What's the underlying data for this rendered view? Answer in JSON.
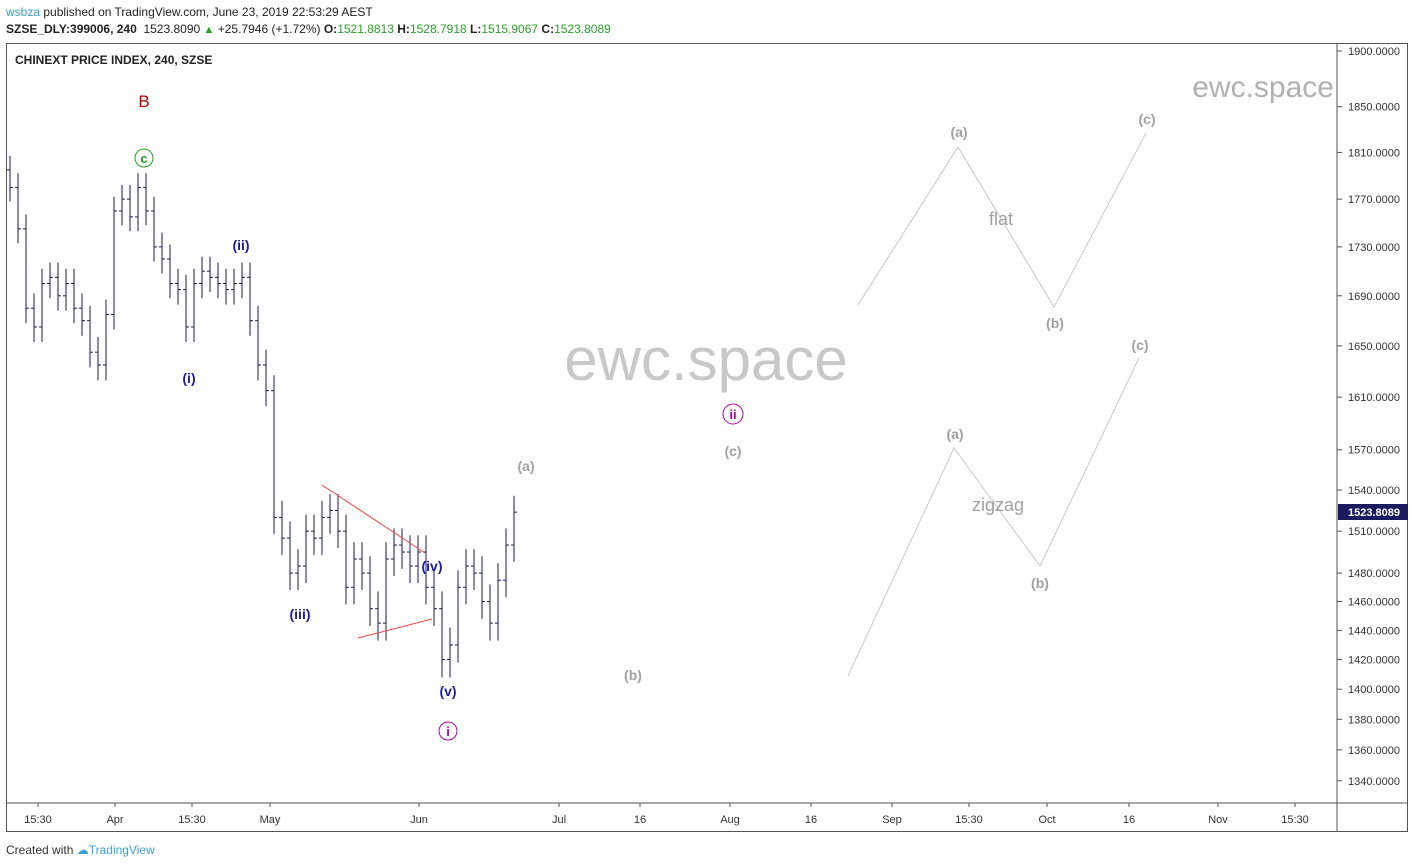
{
  "header": {
    "user": "wsbza",
    "published": "published on TradingView.com, June 23, 2019 22:53:29 AEST",
    "symbol": "SZSE_DLY:399006, 240",
    "last": "1523.8090",
    "change": "+25.7946 (+1.72%)",
    "o_label": "O:",
    "o": "1521.8813",
    "h_label": "H:",
    "h": "1528.7918",
    "l_label": "L:",
    "l": "1515.9067",
    "c_label": "C:",
    "c": "1523.8089",
    "up_icon": "triangle-up-icon"
  },
  "footer": {
    "created": "Created with",
    "brand": "TradingView",
    "logo_icon": "tradingview-cloud-icon"
  },
  "watermark": {
    "center": "ewc.space",
    "corner": "ewc.space"
  },
  "chart_data": {
    "type": "ohlc",
    "title": "CHINEXT PRICE INDEX, 240, SZSE",
    "y_scale": "log",
    "ylim": [
      1325,
      1910
    ],
    "y_ticks": [
      1900,
      1850,
      1810,
      1770,
      1730,
      1690,
      1650,
      1610,
      1570,
      1540,
      1510,
      1480,
      1460,
      1440,
      1420,
      1400,
      1380,
      1360,
      1340
    ],
    "y_tick_labels": [
      "1900.0000",
      "1850.0000",
      "1810.0000",
      "1770.0000",
      "1730.0000",
      "1690.0000",
      "1650.0000",
      "1610.0000",
      "1570.0000",
      "1540.0000",
      "1510.0000",
      "1480.0000",
      "1460.0000",
      "1440.0000",
      "1420.0000",
      "1400.0000",
      "1380.0000",
      "1360.0000",
      "1340.0000"
    ],
    "x_tick_labels": [
      "15:30",
      "Apr",
      "15:30",
      "May",
      "Jun",
      "Jul",
      "16",
      "Aug",
      "16",
      "Sep",
      "15:30",
      "Oct",
      "16",
      "Nov",
      "15:30"
    ],
    "closes": [
      1780,
      1745,
      1680,
      1665,
      1700,
      1705,
      1690,
      1700,
      1680,
      1670,
      1645,
      1635,
      1675,
      1760,
      1770,
      1755,
      1780,
      1760,
      1730,
      1720,
      1700,
      1695,
      1665,
      1700,
      1710,
      1705,
      1700,
      1695,
      1700,
      1705,
      1670,
      1635,
      1615,
      1520,
      1505,
      1480,
      1485,
      1510,
      1505,
      1520,
      1525,
      1510,
      1470,
      1490,
      1480,
      1455,
      1445,
      1490,
      1500,
      1495,
      1485,
      1495,
      1470,
      1455,
      1420,
      1430,
      1470,
      1485,
      1480,
      1460,
      1445,
      1475,
      1500,
      1523.8089
    ],
    "last_price_label": "1523.8089",
    "bar_color": "#1a1a5e",
    "last_label_bg": "#1a1a5e",
    "wave_labels": {
      "B": "B",
      "c": "c",
      "i_small": "(i)",
      "ii_small": "(ii)",
      "iii": "(iii)",
      "iv": "(iv)",
      "v": "(v)",
      "i_circle": "i",
      "ii_circle": "ii",
      "a_gray": "(a)",
      "b_gray": "(b)",
      "c_gray": "(c)",
      "flat": "flat",
      "flat_a": "(a)",
      "flat_b": "(b)",
      "flat_c": "(c)",
      "zigzag": "zigzag",
      "zz_a": "(a)",
      "zz_b": "(b)",
      "zz_c": "(c)"
    },
    "colors": {
      "wave_blue": "#1c1ca8",
      "wave_red": "#c00000",
      "wave_green": "#20a020",
      "wave_magenta": "#b000b0",
      "projection_gray": "#a0a0a0",
      "trendline_red": "#ff4040"
    }
  }
}
